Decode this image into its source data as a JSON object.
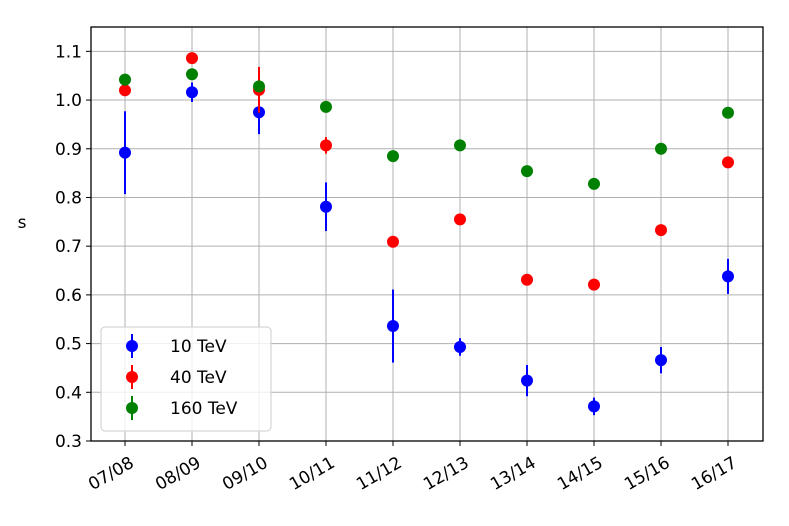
{
  "chart_data": {
    "type": "scatter",
    "categories": [
      "07/08",
      "08/09",
      "09/10",
      "10/11",
      "11/12",
      "12/13",
      "13/14",
      "14/15",
      "15/16",
      "16/17"
    ],
    "xlabel": "",
    "ylabel": "s",
    "ylim": [
      0.3,
      1.15
    ],
    "yticks": [
      "0.3",
      "0.4",
      "0.5",
      "0.6",
      "0.7",
      "0.8",
      "0.9",
      "1.0",
      "1.1"
    ],
    "grid": true,
    "legend_position": "lower-left",
    "series": [
      {
        "name": "10 TeV",
        "color": "#0000ff",
        "values": [
          0.892,
          1.016,
          0.975,
          0.781,
          0.536,
          0.493,
          0.424,
          0.371,
          0.466,
          0.638
        ],
        "errors": [
          0.085,
          0.02,
          0.045,
          0.05,
          0.075,
          0.018,
          0.032,
          0.018,
          0.027,
          0.036
        ]
      },
      {
        "name": "40 TeV",
        "color": "#ff0000",
        "values": [
          1.02,
          1.086,
          1.021,
          0.907,
          0.709,
          0.755,
          0.631,
          0.621,
          0.733,
          0.872
        ],
        "errors": [
          0.0,
          0.0,
          0.047,
          0.017,
          0.0,
          0.0,
          0.0,
          0.0,
          0.0,
          0.0
        ]
      },
      {
        "name": "160 TeV",
        "color": "#008000",
        "values": [
          1.042,
          1.053,
          1.028,
          0.986,
          0.885,
          0.907,
          0.854,
          0.828,
          0.9,
          0.974
        ],
        "errors": [
          0.0,
          0.0,
          0.0,
          0.0,
          0.0,
          0.0,
          0.0,
          0.0,
          0.0,
          0.0
        ]
      }
    ]
  }
}
